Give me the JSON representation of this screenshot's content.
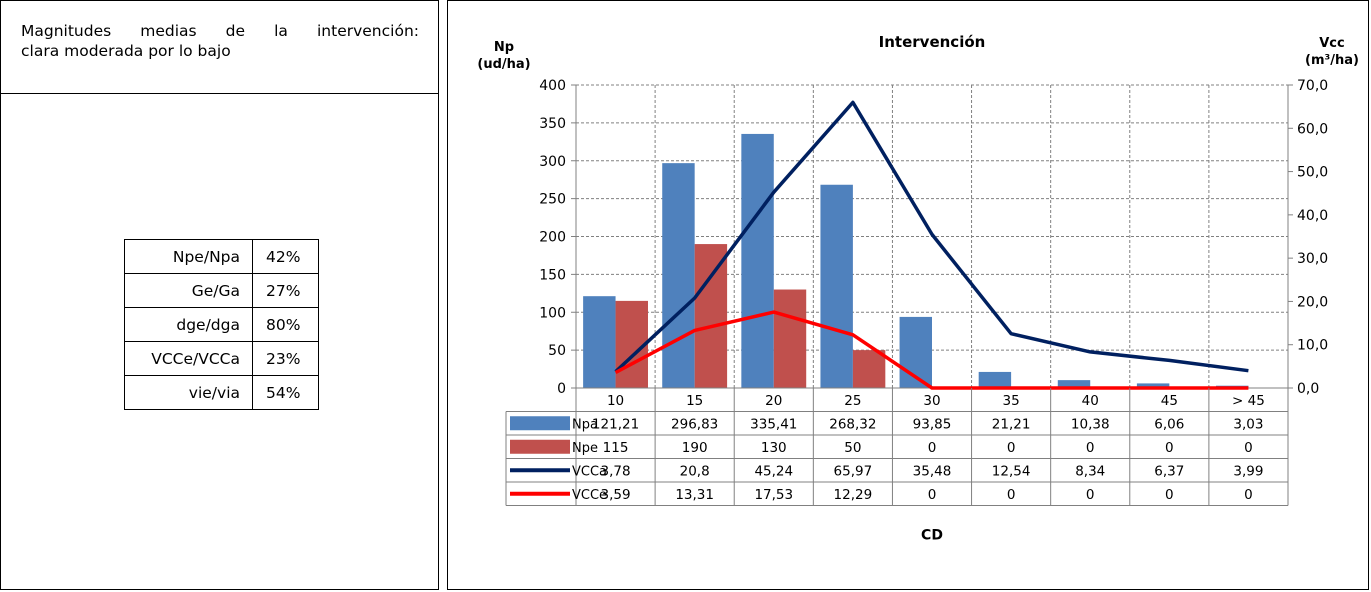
{
  "info": {
    "title_line1": "Magnitudes medias de la intervención:",
    "title_line2": "clara moderada por lo bajo",
    "ratios": [
      {
        "label": "Npe/Npa",
        "value": "42%"
      },
      {
        "label": "Ge/Ga",
        "value": "27%"
      },
      {
        "label": "dge/dga",
        "value": "80%"
      },
      {
        "label": "VCCe/VCCa",
        "value": "23%"
      },
      {
        "label": "vie/via",
        "value": "54%"
      }
    ]
  },
  "chart_data": {
    "type": "bar",
    "title": "Intervención",
    "xlabel": "CD",
    "ylabel_left": [
      "Np",
      "(ud/ha)"
    ],
    "ylabel_right": [
      "Vcc",
      "(m³/ha)"
    ],
    "categories": [
      "10",
      "15",
      "20",
      "25",
      "30",
      "35",
      "40",
      "45",
      "> 45"
    ],
    "ylim_left": [
      0,
      400
    ],
    "yticks_left": [
      "0",
      "50",
      "100",
      "150",
      "200",
      "250",
      "300",
      "350",
      "400"
    ],
    "ylim_right": [
      0,
      70
    ],
    "yticks_right": [
      "0,0",
      "10,0",
      "20,0",
      "30,0",
      "40,0",
      "50,0",
      "60,0",
      "70,0"
    ],
    "grid": true,
    "series": [
      {
        "name": "Npa",
        "kind": "bar",
        "axis": "left",
        "color": "#4F81BD",
        "values": [
          121.21,
          296.83,
          335.41,
          268.32,
          93.85,
          21.21,
          10.38,
          6.06,
          3.03
        ],
        "labels": [
          "121,21",
          "296,83",
          "335,41",
          "268,32",
          "93,85",
          "21,21",
          "10,38",
          "6,06",
          "3,03"
        ]
      },
      {
        "name": "Npe",
        "kind": "bar",
        "axis": "left",
        "color": "#C0504D",
        "values": [
          115,
          190,
          130,
          50,
          0,
          0,
          0,
          0,
          0
        ],
        "labels": [
          "115",
          "190",
          "130",
          "50",
          "0",
          "0",
          "0",
          "0",
          "0"
        ]
      },
      {
        "name": "VCCa",
        "kind": "line",
        "axis": "right",
        "color": "#002060",
        "values": [
          3.78,
          20.8,
          45.24,
          65.97,
          35.48,
          12.54,
          8.34,
          6.37,
          3.99
        ],
        "labels": [
          "3,78",
          "20,8",
          "45,24",
          "65,97",
          "35,48",
          "12,54",
          "8,34",
          "6,37",
          "3,99"
        ]
      },
      {
        "name": "VCCe",
        "kind": "line",
        "axis": "right",
        "color": "#FF0000",
        "values": [
          3.59,
          13.31,
          17.53,
          12.29,
          0,
          0,
          0,
          0,
          0
        ],
        "labels": [
          "3,59",
          "13,31",
          "17,53",
          "12,29",
          "0",
          "0",
          "0",
          "0",
          "0"
        ]
      }
    ]
  }
}
